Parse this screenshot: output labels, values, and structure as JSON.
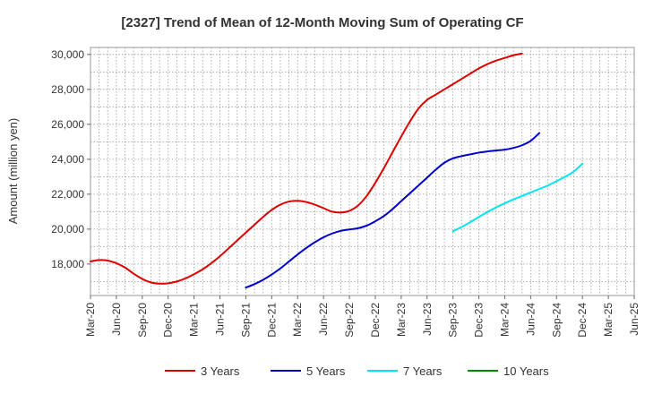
{
  "chart_data": {
    "type": "line",
    "title": "[2327]  Trend of Mean of 12-Month Moving Sum of Operating CF",
    "xlabel": "",
    "ylabel": "Amount (million yen)",
    "ylim": [
      16200,
      30400
    ],
    "yticks": [
      18000,
      20000,
      22000,
      24000,
      26000,
      28000,
      30000
    ],
    "ytick_labels": [
      "18,000",
      "20,000",
      "22,000",
      "24,000",
      "26,000",
      "28,000",
      "30,000"
    ],
    "xlim": [
      0,
      63
    ],
    "xtick_labels": [
      "Mar-20",
      "Jun-20",
      "Sep-20",
      "Dec-20",
      "Mar-21",
      "Jun-21",
      "Sep-21",
      "Dec-21",
      "Mar-22",
      "Jun-22",
      "Sep-22",
      "Dec-22",
      "Mar-23",
      "Jun-23",
      "Sep-23",
      "Dec-23",
      "Mar-24",
      "Jun-24",
      "Sep-24",
      "Dec-24",
      "Mar-25",
      "Jun-25"
    ],
    "grid": true,
    "legend_position": "bottom",
    "series": [
      {
        "name": "3 Years",
        "color": "#dd0000",
        "start_index": 0,
        "values": [
          18150,
          18230,
          18200,
          18050,
          17800,
          17450,
          17150,
          16950,
          16880,
          16900,
          17000,
          17180,
          17420,
          17700,
          18050,
          18450,
          18900,
          19350,
          19800,
          20250,
          20700,
          21100,
          21400,
          21580,
          21620,
          21550,
          21400,
          21200,
          21000,
          20950,
          21050,
          21350,
          21900,
          22650,
          23500,
          24400,
          25300,
          26150,
          26900,
          27400,
          27700,
          28000,
          28300,
          28600,
          28900,
          29200,
          29450,
          29650,
          29800,
          29950,
          30050
        ]
      },
      {
        "name": "5 Years",
        "color": "#0000cc",
        "start_index": 18,
        "values": [
          16650,
          16850,
          17100,
          17400,
          17750,
          18150,
          18550,
          18920,
          19250,
          19530,
          19750,
          19900,
          19980,
          20050,
          20200,
          20450,
          20750,
          21150,
          21600,
          22050,
          22500,
          22950,
          23400,
          23800,
          24050,
          24180,
          24280,
          24380,
          24450,
          24500,
          24550,
          24650,
          24800,
          25050,
          25500
        ]
      },
      {
        "name": "7 Years",
        "color": "#00e5ee",
        "start_index": 42,
        "values": [
          19880,
          20120,
          20400,
          20700,
          20980,
          21250,
          21480,
          21700,
          21900,
          22100,
          22300,
          22500,
          22750,
          23000,
          23300,
          23750
        ]
      },
      {
        "name": "10 Years",
        "color": "#008800",
        "start_index": 0,
        "values": []
      }
    ]
  }
}
